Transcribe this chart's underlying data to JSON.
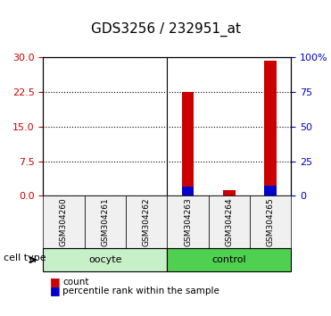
{
  "title": "GDS3256 / 232951_at",
  "samples": [
    "GSM304260",
    "GSM304261",
    "GSM304262",
    "GSM304263",
    "GSM304264",
    "GSM304265"
  ],
  "red_values": [
    0,
    0,
    0,
    22.5,
    1.2,
    29.2
  ],
  "blue_values": [
    0,
    0,
    0,
    6.5,
    0.3,
    7.5
  ],
  "left_ylim": [
    0,
    30
  ],
  "right_ylim": [
    0,
    100
  ],
  "left_yticks": [
    0,
    7.5,
    15,
    22.5,
    30
  ],
  "right_yticks": [
    0,
    25,
    50,
    75,
    100
  ],
  "right_yticklabels": [
    "0",
    "25",
    "50",
    "75",
    "100%"
  ],
  "groups": [
    {
      "label": "oocyte",
      "indices": [
        0,
        1,
        2
      ],
      "color": "#c8f0c8"
    },
    {
      "label": "control",
      "indices": [
        3,
        4,
        5
      ],
      "color": "#50d050"
    }
  ],
  "bar_width": 0.5,
  "red_color": "#cc0000",
  "blue_color": "#0000cc",
  "grid_color": "#000000",
  "tick_label_color_left": "#cc0000",
  "tick_label_color_right": "#0000cc",
  "title_fontsize": 12,
  "legend_labels": [
    "count",
    "percentile rank within the sample"
  ],
  "cell_type_label": "cell type",
  "background_color": "#f0f0f0"
}
